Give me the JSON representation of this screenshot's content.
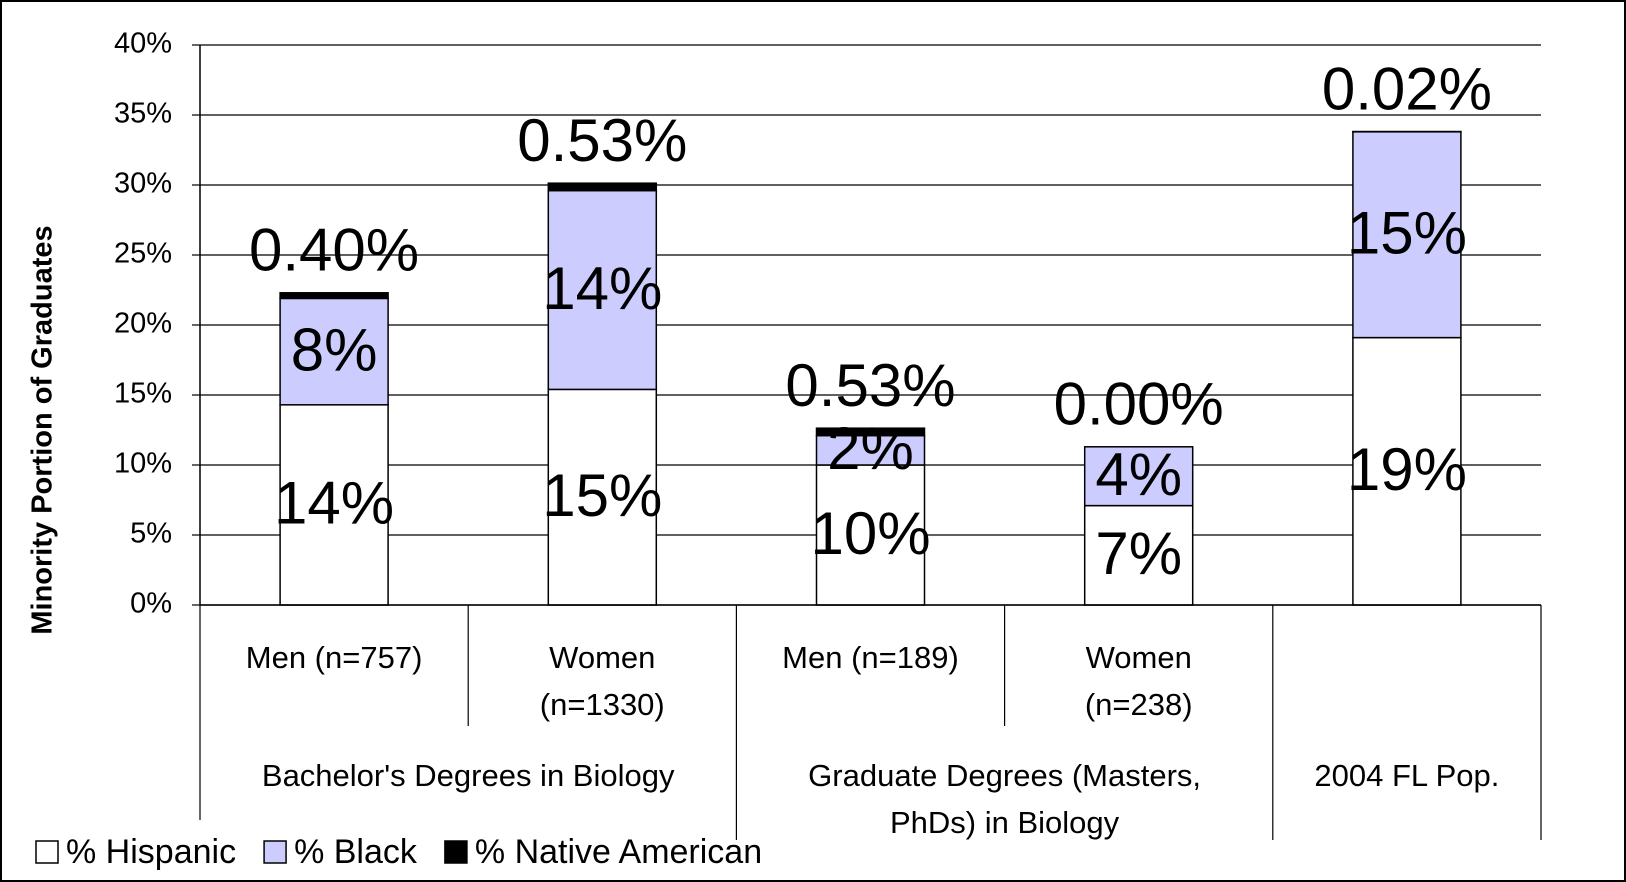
{
  "chart_data": {
    "type": "stacked_bar",
    "y_axis_label": "Minority Portion of Graduates",
    "categories": [
      "Men (n=757)",
      "Women\n(n=1330)",
      "Men (n=189)",
      "Women\n(n=238)",
      ""
    ],
    "groups": [
      "Bachelor's Degrees in Biology",
      "Graduate Degrees (Masters,\nPhDs) in Biology",
      "2004 FL Pop."
    ],
    "series": [
      {
        "name": "% Hispanic",
        "color": "#ffffff",
        "values": [
          14.3,
          15.4,
          10.0,
          7.1,
          19.1
        ],
        "value_labels": [
          "14%",
          "15%",
          "10%",
          "7%",
          "19%"
        ]
      },
      {
        "name": "% Black",
        "color": "#ccccff",
        "values": [
          7.6,
          14.2,
          2.1,
          4.2,
          14.7
        ],
        "value_labels": [
          "8%",
          "14%",
          "2%",
          "4%",
          "15%"
        ]
      },
      {
        "name": "% Native American",
        "color": "#000000",
        "values": [
          0.4,
          0.53,
          0.53,
          0.0,
          0.02
        ],
        "value_labels": [
          "0.40%",
          "0.53%",
          "0.53%",
          "0.00%",
          "0.02%"
        ]
      }
    ],
    "ylim": [
      0,
      40
    ],
    "yticks": [
      {
        "value": 0,
        "label": "0%"
      },
      {
        "value": 5,
        "label": "5%"
      },
      {
        "value": 10,
        "label": "10%"
      },
      {
        "value": 15,
        "label": "15%"
      },
      {
        "value": 20,
        "label": "20%"
      },
      {
        "value": 25,
        "label": "25%"
      },
      {
        "value": 30,
        "label": "30%"
      },
      {
        "value": 35,
        "label": "35%"
      },
      {
        "value": 40,
        "label": "40%"
      }
    ],
    "grid": true,
    "legend": "bottom-left"
  }
}
